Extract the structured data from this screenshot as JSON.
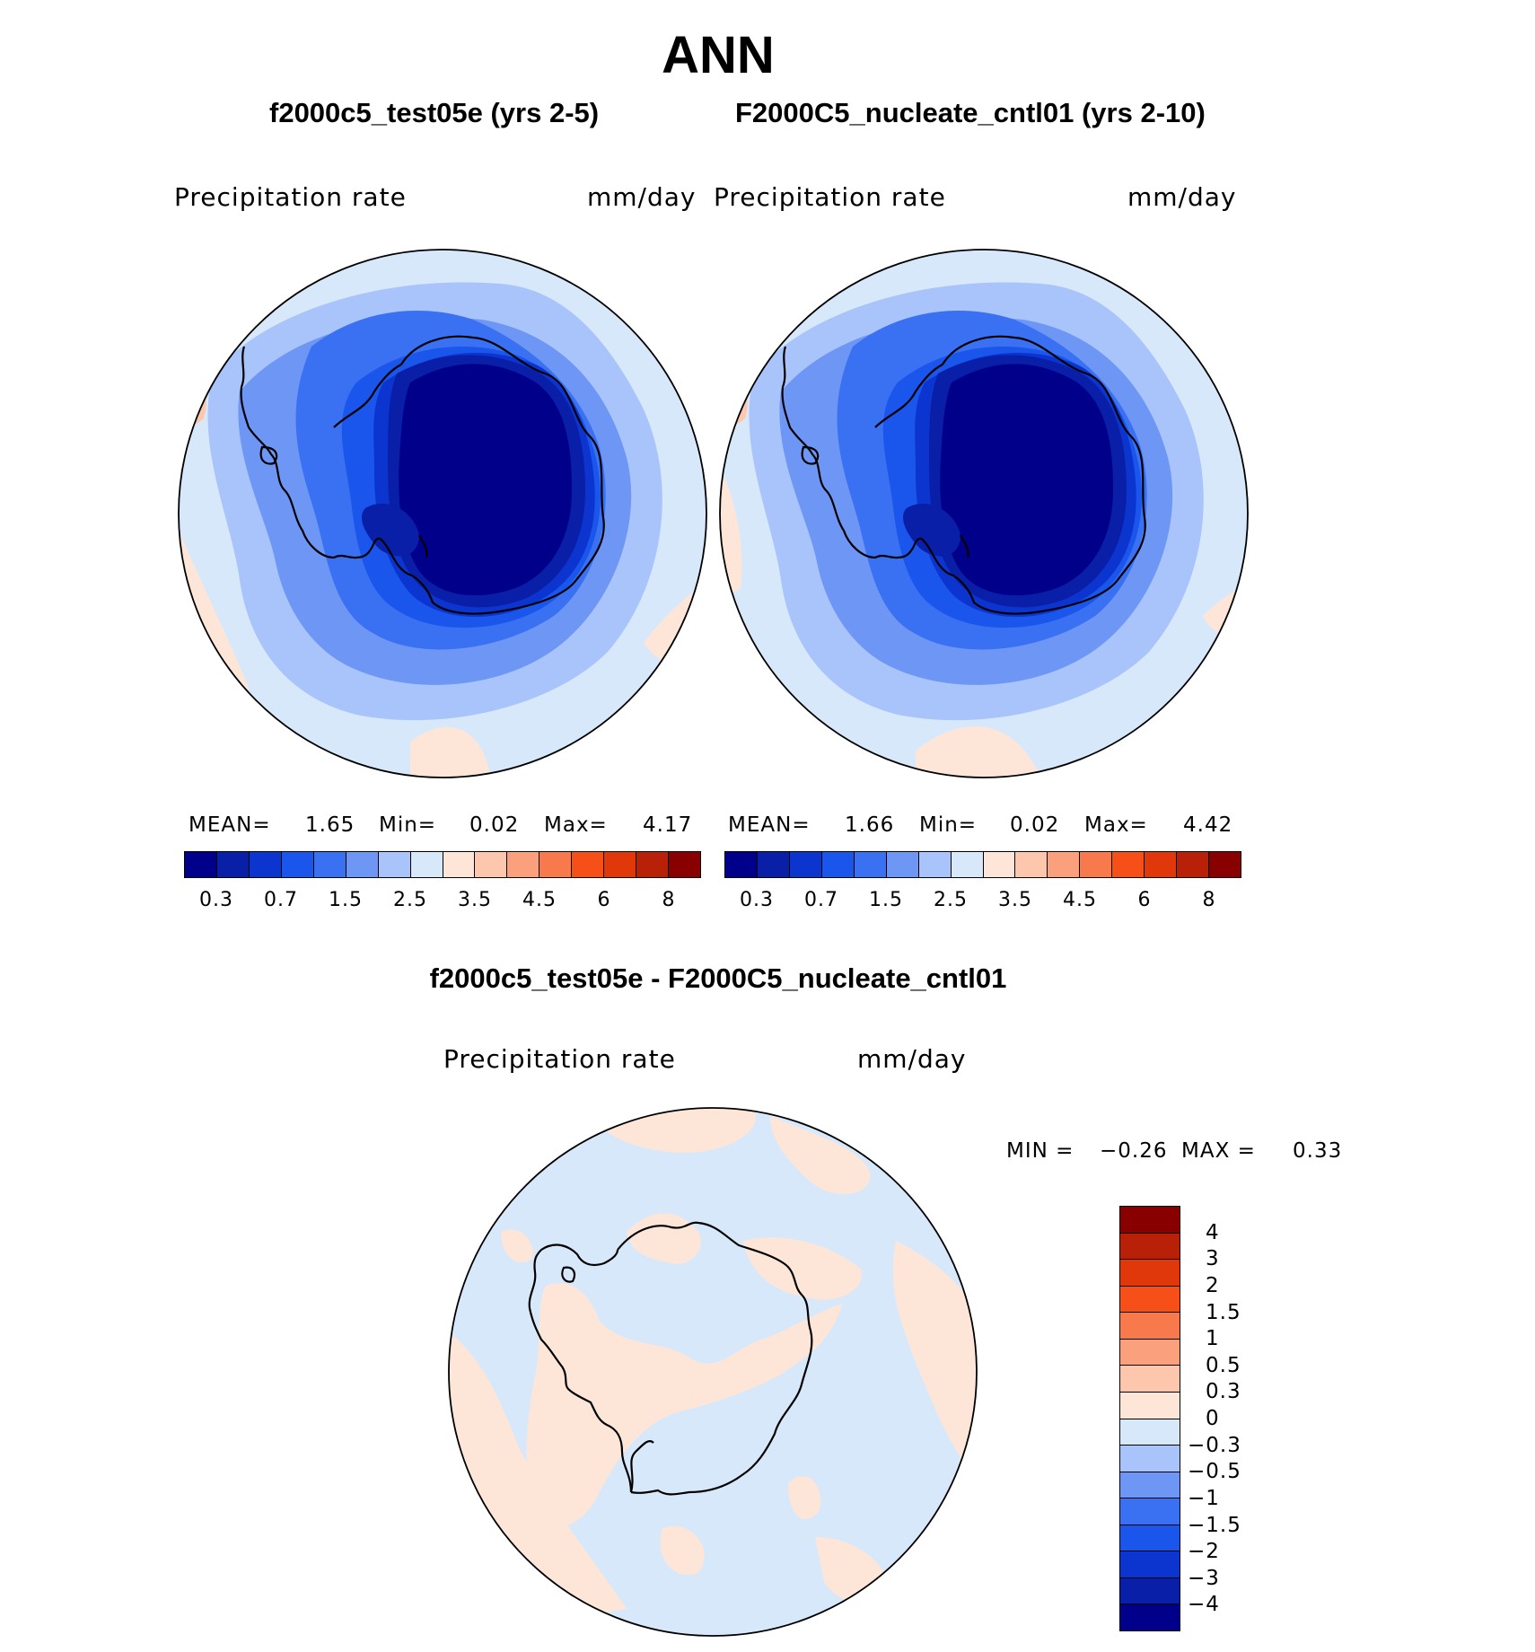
{
  "title": "ANN",
  "panels": [
    {
      "subtitle": "f2000c5_test05e (yrs 2-5)",
      "field_label": "Precipitation  rate",
      "units": "mm/day",
      "stats": {
        "mean_label": "MEAN=",
        "mean": "1.65",
        "min_label": "Min=",
        "min": "0.02",
        "max_label": "Max=",
        "max": "4.17"
      }
    },
    {
      "subtitle": "F2000C5_nucleate_cntl01 (yrs 2-10)",
      "field_label": "Precipitation  rate",
      "units": "mm/day",
      "stats": {
        "mean_label": "MEAN=",
        "mean": "1.66",
        "min_label": "Min=",
        "min": "0.02",
        "max_label": "Max=",
        "max": "4.42"
      }
    }
  ],
  "colorbar": {
    "colors": [
      "#00008b",
      "#0a1fa8",
      "#0c35d0",
      "#1a55ec",
      "#3a70f2",
      "#6e96f5",
      "#a9c4fb",
      "#d8e8fb",
      "#fde6d8",
      "#fcc7ad",
      "#faa07d",
      "#f87a4c",
      "#f65018",
      "#e0380b",
      "#b82008",
      "#880000"
    ],
    "ticks": [
      "0.3",
      "0.7",
      "1.5",
      "2.5",
      "3.5",
      "4.5",
      "6",
      "8"
    ]
  },
  "difference": {
    "title": "f2000c5_test05e - F2000C5_nucleate_cntl01",
    "field_label": "Precipitation  rate",
    "units": "mm/day",
    "min_label": "MIN  =",
    "min": "−0.26",
    "max_label": "MAX  =",
    "max": "0.33",
    "colorbar": {
      "colors": [
        "#880000",
        "#b82008",
        "#e0380b",
        "#f65018",
        "#f87a4c",
        "#faa07d",
        "#fcc7ad",
        "#fde6d8",
        "#d8e8fb",
        "#a9c4fb",
        "#6e96f5",
        "#3a70f2",
        "#1a55ec",
        "#0c35d0",
        "#0a1fa8",
        "#00008b"
      ],
      "ticks": [
        "4",
        "3",
        "2",
        "1.5",
        "1",
        "0.5",
        "0.3",
        "0",
        "−0.3",
        "−0.5",
        "−1",
        "−1.5",
        "−2",
        "−3",
        "−4"
      ]
    }
  }
}
